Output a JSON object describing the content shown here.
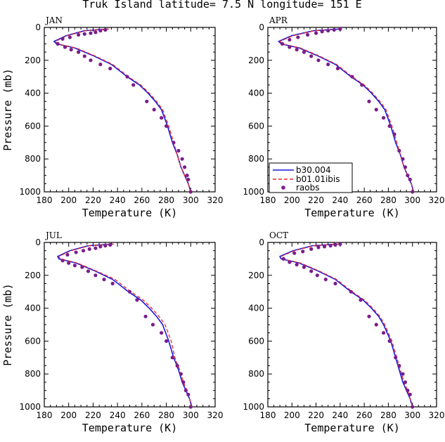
{
  "title": "Truk Island  latitude= 7.5 N longitude= 151 E",
  "colors": {
    "model_a": "#1a1adb",
    "model_b": "#e8262b",
    "obs": "#7a1e8a"
  },
  "legend": {
    "entries": [
      "b30.004",
      "b01.01ibis",
      "raobs"
    ]
  },
  "chart_data": [
    {
      "type": "line",
      "panel": "JAN",
      "xlabel": "Temperature (K)",
      "ylabel": "Pressure (mb)",
      "xlim": [
        180,
        320
      ],
      "ylim": [
        1000,
        0
      ],
      "xticks": [
        180,
        200,
        220,
        240,
        260,
        280,
        300,
        320
      ],
      "yticks": [
        0,
        200,
        400,
        600,
        800,
        1000
      ],
      "series": [
        {
          "name": "b30.004",
          "style": "solid",
          "x": [
            232,
            213,
            198,
            188,
            190,
            205,
            221,
            235,
            248,
            258,
            265,
            271,
            276,
            281,
            285,
            289,
            292,
            295,
            298,
            300
          ],
          "y": [
            10,
            20,
            50,
            85,
            100,
            125,
            175,
            225,
            300,
            350,
            400,
            450,
            500,
            600,
            700,
            775,
            850,
            900,
            950,
            1000
          ]
        },
        {
          "name": "b01.01ibis",
          "style": "dashed",
          "x": [
            233,
            214,
            199,
            189,
            191,
            206,
            222,
            236,
            249,
            259,
            266,
            272,
            277,
            282,
            286,
            289,
            292,
            295,
            298,
            300
          ],
          "y": [
            10,
            20,
            50,
            85,
            100,
            125,
            175,
            225,
            300,
            350,
            400,
            450,
            500,
            600,
            700,
            775,
            850,
            900,
            950,
            1000
          ]
        },
        {
          "name": "raobs",
          "style": "dots",
          "x": [
            230,
            226,
            222,
            218,
            213,
            208,
            201,
            195,
            191,
            197,
            202,
            208,
            213,
            218,
            226,
            234,
            248,
            253,
            264,
            270,
            276,
            280,
            286,
            290,
            293,
            295,
            297,
            298,
            300
          ],
          "y": [
            15,
            20,
            30,
            35,
            40,
            45,
            60,
            70,
            100,
            120,
            135,
            150,
            175,
            200,
            225,
            250,
            300,
            350,
            450,
            500,
            550,
            600,
            700,
            750,
            800,
            850,
            900,
            925,
            1000
          ]
        }
      ]
    },
    {
      "type": "line",
      "panel": "APR",
      "xlabel": "Temperature (K)",
      "ylabel": "",
      "xlim": [
        180,
        320
      ],
      "ylim": [
        1000,
        0
      ],
      "xticks": [
        180,
        200,
        220,
        240,
        260,
        280,
        300,
        320
      ],
      "yticks": [
        0,
        200,
        400,
        600,
        800,
        1000
      ],
      "series": [
        {
          "name": "b30.004",
          "style": "solid",
          "x": [
            240,
            218,
            200,
            189,
            191,
            206,
            222,
            236,
            249,
            259,
            266,
            272,
            277,
            282,
            286,
            290,
            293,
            296,
            299,
            301
          ],
          "y": [
            10,
            20,
            50,
            85,
            100,
            125,
            175,
            225,
            300,
            350,
            400,
            450,
            500,
            600,
            700,
            775,
            850,
            900,
            950,
            1000
          ]
        },
        {
          "name": "b01.01ibis",
          "style": "dashed",
          "x": [
            241,
            219,
            201,
            190,
            192,
            207,
            223,
            237,
            250,
            260,
            267,
            273,
            278,
            283,
            287,
            290,
            293,
            296,
            299,
            301
          ],
          "y": [
            10,
            20,
            50,
            85,
            100,
            125,
            175,
            225,
            300,
            350,
            400,
            450,
            500,
            600,
            700,
            775,
            850,
            900,
            950,
            1000
          ]
        },
        {
          "name": "raobs",
          "style": "dots",
          "x": [
            240,
            235,
            230,
            225,
            220,
            213,
            205,
            198,
            192,
            198,
            204,
            210,
            216,
            222,
            230,
            238,
            250,
            258,
            264,
            270,
            276,
            281,
            285,
            289,
            292,
            294,
            296,
            298,
            300
          ],
          "y": [
            10,
            15,
            20,
            25,
            35,
            45,
            60,
            75,
            100,
            120,
            135,
            150,
            175,
            200,
            225,
            250,
            300,
            350,
            450,
            500,
            550,
            600,
            650,
            750,
            800,
            850,
            900,
            925,
            1000
          ]
        }
      ]
    },
    {
      "type": "line",
      "panel": "JUL",
      "xlabel": "Temperature (K)",
      "ylabel": "Pressure (mb)",
      "xlim": [
        180,
        320
      ],
      "ylim": [
        1000,
        0
      ],
      "xticks": [
        180,
        200,
        220,
        240,
        260,
        280,
        300,
        320
      ],
      "yticks": [
        0,
        200,
        400,
        600,
        800,
        1000
      ],
      "series": [
        {
          "name": "b30.004",
          "style": "solid",
          "x": [
            236,
            216,
            201,
            191,
            192,
            206,
            222,
            236,
            249,
            259,
            266,
            272,
            277,
            282,
            286,
            290,
            293,
            296,
            299,
            301
          ],
          "y": [
            10,
            20,
            50,
            85,
            100,
            125,
            175,
            225,
            300,
            350,
            400,
            450,
            500,
            600,
            700,
            775,
            850,
            900,
            950,
            1000
          ]
        },
        {
          "name": "b01.01ibis",
          "style": "dashed",
          "x": [
            237,
            217,
            202,
            192,
            193,
            207,
            223,
            238,
            251,
            261,
            268,
            274,
            279,
            284,
            287,
            291,
            294,
            297,
            299,
            301
          ],
          "y": [
            10,
            20,
            50,
            85,
            100,
            125,
            175,
            225,
            300,
            350,
            400,
            450,
            500,
            600,
            700,
            775,
            850,
            900,
            950,
            1000
          ]
        },
        {
          "name": "raobs",
          "style": "dots",
          "x": [
            234,
            230,
            226,
            222,
            217,
            212,
            206,
            199,
            195,
            200,
            205,
            211,
            216,
            222,
            229,
            236,
            250,
            256,
            263,
            269,
            276,
            280,
            285,
            289,
            292,
            294,
            296,
            298,
            300
          ],
          "y": [
            15,
            20,
            25,
            35,
            40,
            50,
            60,
            75,
            110,
            125,
            140,
            150,
            175,
            200,
            225,
            250,
            300,
            350,
            450,
            500,
            550,
            600,
            700,
            750,
            800,
            850,
            900,
            925,
            1000
          ]
        }
      ]
    },
    {
      "type": "line",
      "panel": "OCT",
      "xlabel": "Temperature (K)",
      "ylabel": "",
      "xlim": [
        180,
        320
      ],
      "ylim": [
        1000,
        0
      ],
      "xticks": [
        180,
        200,
        220,
        240,
        260,
        280,
        300,
        320
      ],
      "yticks": [
        0,
        200,
        400,
        600,
        800,
        1000
      ],
      "series": [
        {
          "name": "b30.004",
          "style": "solid",
          "x": [
            238,
            217,
            201,
            190,
            191,
            206,
            222,
            236,
            249,
            259,
            266,
            272,
            276,
            282,
            286,
            289,
            292,
            295,
            298,
            300
          ],
          "y": [
            10,
            20,
            50,
            85,
            100,
            125,
            175,
            225,
            300,
            350,
            400,
            450,
            500,
            600,
            700,
            775,
            850,
            900,
            950,
            1000
          ]
        },
        {
          "name": "b01.01ibis",
          "style": "dashed",
          "x": [
            239,
            218,
            202,
            191,
            192,
            207,
            223,
            237,
            250,
            260,
            267,
            273,
            277,
            283,
            287,
            290,
            293,
            296,
            298,
            300
          ],
          "y": [
            10,
            20,
            50,
            85,
            100,
            125,
            175,
            225,
            300,
            350,
            400,
            450,
            500,
            600,
            700,
            775,
            850,
            900,
            950,
            1000
          ]
        },
        {
          "name": "raobs",
          "style": "dots",
          "x": [
            240,
            236,
            232,
            227,
            222,
            216,
            209,
            202,
            193,
            198,
            204,
            210,
            216,
            221,
            228,
            236,
            249,
            257,
            264,
            270,
            276,
            281,
            286,
            289,
            292,
            294,
            296,
            298,
            300
          ],
          "y": [
            10,
            15,
            20,
            25,
            30,
            40,
            55,
            65,
            100,
            120,
            135,
            150,
            175,
            200,
            225,
            250,
            300,
            350,
            450,
            500,
            550,
            600,
            700,
            750,
            800,
            850,
            900,
            925,
            1000
          ]
        }
      ]
    }
  ]
}
